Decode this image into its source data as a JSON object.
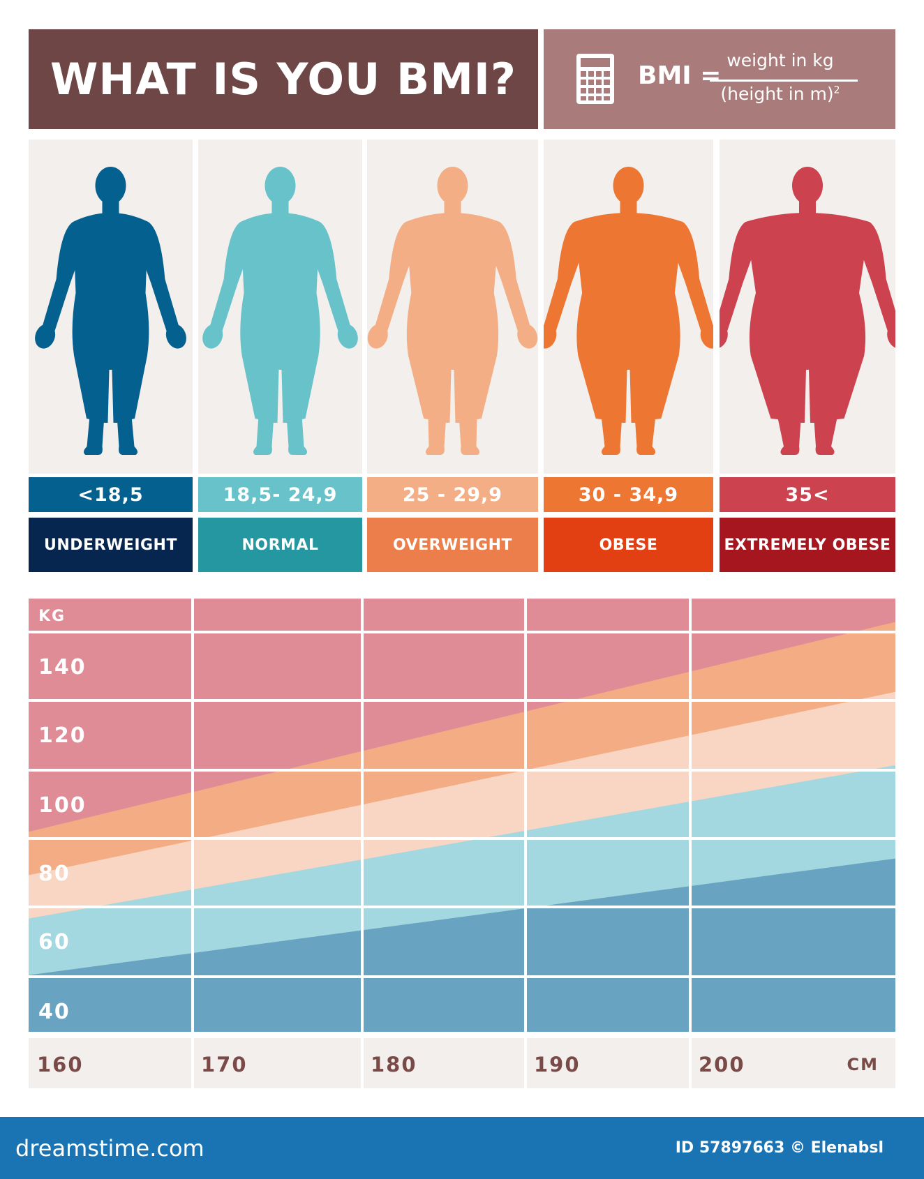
{
  "header": {
    "title": "WHAT IS YOU BMI?",
    "formula_lhs": "BMI =",
    "formula_numerator": "weight in kg",
    "formula_denominator": "(height in m)",
    "formula_exponent": "2",
    "calculator_icon": "calculator-icon"
  },
  "categories": [
    {
      "range": "<18,5",
      "label": "UNDERWEIGHT",
      "figure_color": "#04608f",
      "range_color": "#04608f",
      "label_color": "#06254f"
    },
    {
      "range": "18,5- 24,9",
      "label": "NORMAL",
      "figure_color": "#67c2ca",
      "range_color": "#67c2ca",
      "label_color": "#2597a0"
    },
    {
      "range": "25 - 29,9",
      "label": "OVERWEIGHT",
      "figure_color": "#f3ae85",
      "range_color": "#f3ae85",
      "label_color": "#ec7e4b"
    },
    {
      "range": "30 - 34,9",
      "label": "OBESE",
      "figure_color": "#ee7633",
      "range_color": "#ee7633",
      "label_color": "#e23f12"
    },
    {
      "range": "35<",
      "label": "EXTREMELY OBESE",
      "figure_color": "#cc434f",
      "range_color": "#cc434f",
      "label_color": "#a5161e"
    }
  ],
  "chart_data": {
    "type": "area",
    "ylabel": "KG",
    "xlabel": "CM",
    "x_ticks": [
      "160",
      "170",
      "180",
      "190",
      "200"
    ],
    "y_ticks": [
      "140",
      "120",
      "100",
      "80",
      "60",
      "40"
    ],
    "x_range": [
      160,
      210
    ],
    "y_range": [
      30,
      160
    ],
    "grid": true,
    "bands": [
      {
        "name": "UNDERWEIGHT",
        "color": "#68a3c2",
        "upper_boundary": [
          [
            160,
            47
          ],
          [
            210,
            82
          ]
        ]
      },
      {
        "name": "NORMAL",
        "color": "#a4d8e0",
        "upper_boundary": [
          [
            160,
            64
          ],
          [
            210,
            110
          ]
        ]
      },
      {
        "name": "OVERWEIGHT",
        "color": "#f8d6c3",
        "upper_boundary": [
          [
            160,
            77
          ],
          [
            210,
            132
          ]
        ]
      },
      {
        "name": "OBESE",
        "color": "#f3ac84",
        "upper_boundary": [
          [
            160,
            90
          ],
          [
            210,
            153
          ]
        ]
      },
      {
        "name": "EXTREMELY OBESE",
        "color": "#df8c97",
        "upper_boundary": [
          [
            160,
            160
          ],
          [
            210,
            160
          ]
        ]
      }
    ]
  },
  "footer": {
    "brand": "dreamstime.com",
    "id_text": "ID 57897663 © Elenabsl"
  }
}
